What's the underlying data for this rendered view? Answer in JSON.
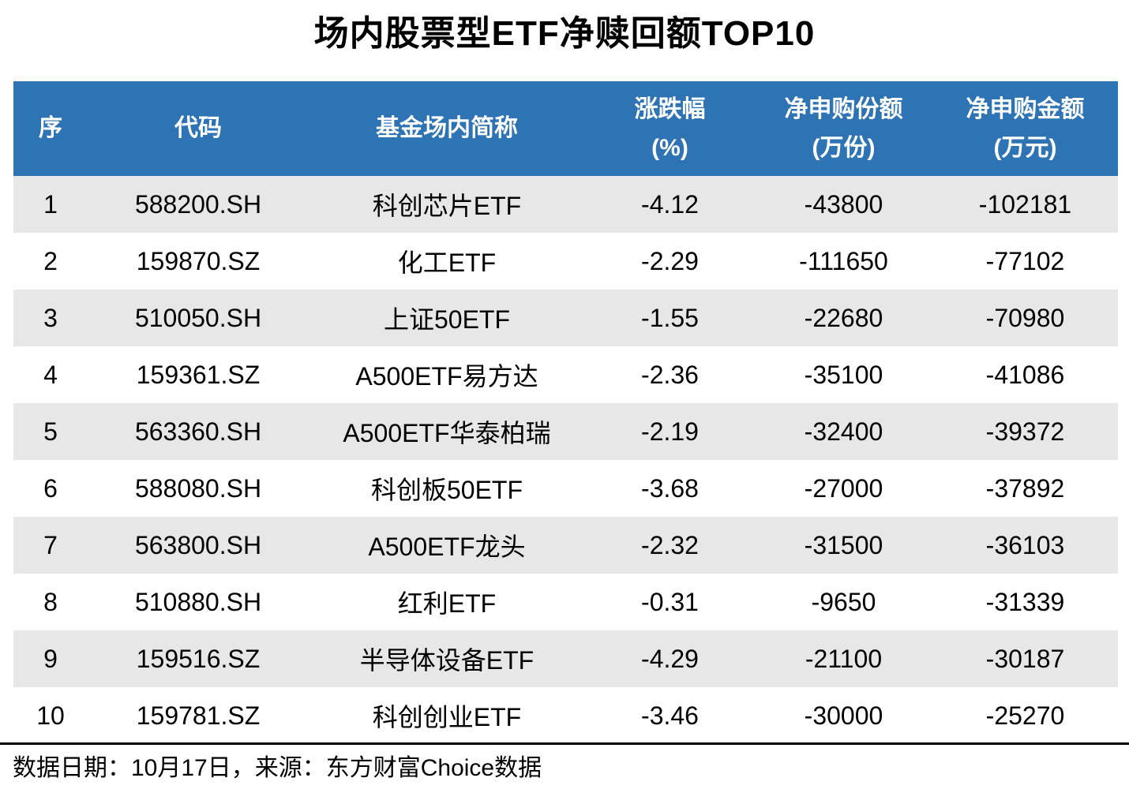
{
  "title": "场内股票型ETF净赎回额TOP10",
  "footer": {
    "source_text": "数据日期：10月17日，来源：东方财富Choice数据"
  },
  "colors": {
    "header_bg": "#2E74B5",
    "header_text": "#FFFFFF",
    "row_alt_bg": "#E8E7E7",
    "row_bg": "#FFFFFF",
    "text": "#000000",
    "divider": "#000000"
  },
  "table": {
    "header_lines": [
      [
        "序"
      ],
      [
        "代码"
      ],
      [
        "基金场内简称"
      ],
      [
        "涨跌幅",
        "(%)"
      ],
      [
        "净申购份额",
        "(万份)"
      ],
      [
        "净申购金额",
        "(万元)"
      ]
    ]
  },
  "chart_data": {
    "type": "table",
    "title": "场内股票型ETF净赎回额TOP10",
    "columns": [
      "序",
      "代码",
      "基金场内简称",
      "涨跌幅(%)",
      "净申购份额(万份)",
      "净申购金额(万元)"
    ],
    "rows": [
      [
        1,
        "588200.SH",
        "科创芯片ETF",
        "-4.12",
        "-43800",
        "-102181"
      ],
      [
        2,
        "159870.SZ",
        "化工ETF",
        "-2.29",
        "-111650",
        "-77102"
      ],
      [
        3,
        "510050.SH",
        "上证50ETF",
        "-1.55",
        "-22680",
        "-70980"
      ],
      [
        4,
        "159361.SZ",
        "A500ETF易方达",
        "-2.36",
        "-35100",
        "-41086"
      ],
      [
        5,
        "563360.SH",
        "A500ETF华泰柏瑞",
        "-2.19",
        "-32400",
        "-39372"
      ],
      [
        6,
        "588080.SH",
        "科创板50ETF",
        "-3.68",
        "-27000",
        "-37892"
      ],
      [
        7,
        "563800.SH",
        "A500ETF龙头",
        "-2.32",
        "-31500",
        "-36103"
      ],
      [
        8,
        "510880.SH",
        "红利ETF",
        "-0.31",
        "-9650",
        "-31339"
      ],
      [
        9,
        "159516.SZ",
        "半导体设备ETF",
        "-4.29",
        "-21100",
        "-30187"
      ],
      [
        10,
        "159781.SZ",
        "科创创业ETF",
        "-3.46",
        "-30000",
        "-25270"
      ]
    ],
    "source_note": "数据日期：10月17日，来源：东方财富Choice数据"
  }
}
